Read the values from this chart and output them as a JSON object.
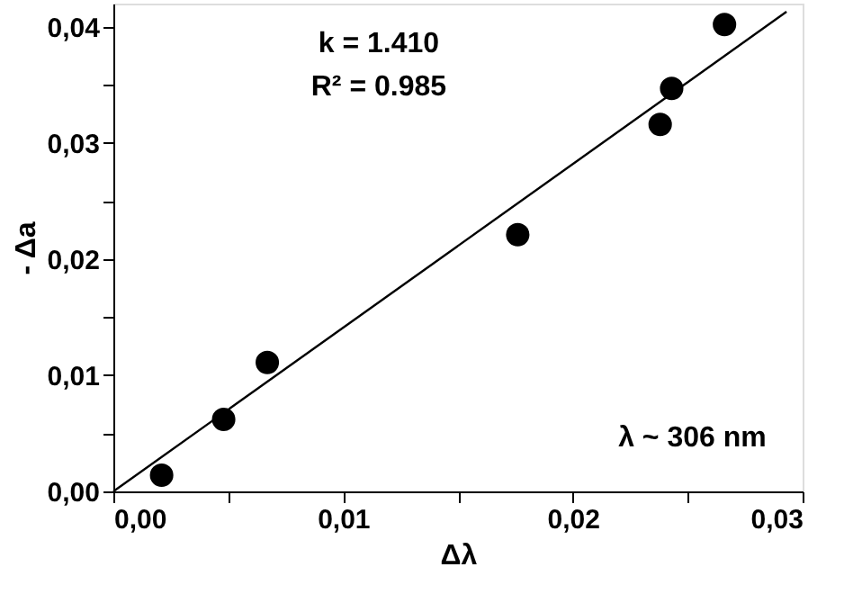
{
  "chart_data": {
    "type": "scatter",
    "xlabel": "Δλ",
    "ylabel": "- Δa",
    "x": [
      0.0021,
      0.0048,
      0.0067,
      0.0176,
      0.0238,
      0.0243,
      0.0266
    ],
    "series": [
      {
        "type": "scatter",
        "color": "#000000",
        "marker": "circle",
        "values": [
          0.0014,
          0.0062,
          0.0111,
          0.0221,
          0.0316,
          0.0347,
          0.0402
        ]
      },
      {
        "type": "line",
        "color": "#000000",
        "line_style": "solid",
        "x": [
          0.0,
          0.0293
        ],
        "values": [
          0.0,
          0.0413
        ]
      }
    ],
    "xlim": [
      0.0,
      0.03
    ],
    "ylim": [
      0.0,
      0.042
    ],
    "xticks": [
      {
        "value": 0.0,
        "label": "0,00"
      },
      {
        "value": 0.005,
        "label": null
      },
      {
        "value": 0.01,
        "label": "0,01"
      },
      {
        "value": 0.015,
        "label": null
      },
      {
        "value": 0.02,
        "label": "0,02"
      },
      {
        "value": 0.025,
        "label": null
      },
      {
        "value": 0.03,
        "label": "0,03"
      }
    ],
    "yticks": [
      {
        "value": 0.0,
        "label": "0,00"
      },
      {
        "value": 0.005,
        "label": null
      },
      {
        "value": 0.01,
        "label": "0,01"
      },
      {
        "value": 0.015,
        "label": null
      },
      {
        "value": 0.02,
        "label": "0,02"
      },
      {
        "value": 0.025,
        "label": null
      },
      {
        "value": 0.03,
        "label": "0,03"
      },
      {
        "value": 0.035,
        "label": null
      },
      {
        "value": 0.04,
        "label": "0,04"
      }
    ],
    "annotations": [
      "k = 1.410",
      "R² = 0.985",
      "λ ~ 306 nm"
    ],
    "grid": false
  }
}
